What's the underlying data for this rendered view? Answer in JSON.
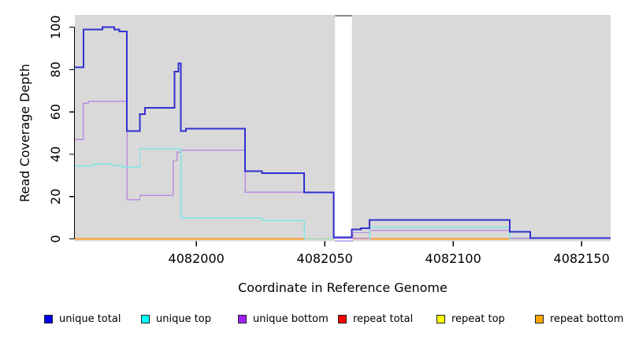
{
  "chart_data": {
    "type": "line",
    "title": "",
    "xlabel": "Coordinate in Reference Genome",
    "ylabel": "Read Coverage Depth",
    "x_ticks": [
      4082000,
      4082050,
      4082100,
      4082150
    ],
    "y_ticks": [
      0,
      20,
      40,
      60,
      80,
      100
    ],
    "xlim_display": [
      4081952.7,
      4082161.3
    ],
    "ylim_display": [
      -1.1,
      105.8
    ],
    "grid": false,
    "plot_background_color": "#d9d9d9",
    "coverage_gap_band": {
      "from": 4082054.0,
      "to": 4082060.6,
      "color": "#ffffff",
      "top_border_color": "#8a8a8a"
    },
    "legend": {
      "position": "bottom",
      "items": [
        {
          "label": "unique total",
          "color": "#0000ee"
        },
        {
          "label": "unique top",
          "color": "#00ffff"
        },
        {
          "label": "unique bottom",
          "color": "#a020f0"
        },
        {
          "label": "repeat total",
          "color": "#ff0000"
        },
        {
          "label": "repeat top",
          "color": "#ffff00"
        },
        {
          "label": "repeat bottom",
          "color": "#ffa500"
        }
      ]
    },
    "lines": [
      {
        "name": "band-lower-border",
        "color": "#9f9ff2",
        "width": 1.4,
        "segments": [
          [
            [
              4082053.9,
              -1
            ],
            [
              4082061,
              -1
            ]
          ]
        ]
      },
      {
        "name": "repeat-total-visible",
        "color": "#d04878",
        "width": 1.4,
        "segments": [
          [
            [
              4082060.6,
              0.2
            ],
            [
              4082068,
              0.2
            ]
          ]
        ]
      },
      {
        "name": "repeat-bottom",
        "color": "#ff9d26",
        "width": 1.6,
        "segments": [
          [
            [
              4081952.7,
              0
            ],
            [
              4082042,
              0
            ]
          ],
          [
            [
              4082068,
              0
            ],
            [
              4082122,
              0
            ]
          ]
        ]
      },
      {
        "name": "overlap-blend",
        "color": "#90d8a8",
        "width": 1.4,
        "segments": [
          [
            [
              4082042,
              0
            ],
            [
              4082053.9,
              0
            ]
          ],
          [
            [
              4082122,
              0
            ],
            [
              4082130,
              0
            ]
          ]
        ]
      },
      {
        "name": "unique-bottom",
        "color": "#bb8ede",
        "width": 1.4,
        "segments": [
          [
            [
              4081952.7,
              47
            ],
            [
              4081956,
              64
            ],
            [
              4081958,
              65
            ],
            [
              4081973,
              18.5
            ],
            [
              4081978,
              20.5
            ],
            [
              4081991,
              37
            ],
            [
              4081992.5,
              41
            ],
            [
              4081994,
              42
            ],
            [
              4082019,
              22
            ],
            [
              4082053.5,
              0.3
            ],
            [
              4082061,
              3
            ],
            [
              4082067.5,
              4
            ],
            [
              4082122,
              0.3
            ],
            [
              4082161.3,
              0.3
            ]
          ]
        ]
      },
      {
        "name": "unique-top",
        "color": "#7ee6e8",
        "width": 1.4,
        "segments": [
          [
            [
              4081952.7,
              34.5
            ],
            [
              4081960,
              35.5
            ],
            [
              4081967,
              34.7
            ],
            [
              4081971,
              34
            ],
            [
              4081978,
              42.5
            ],
            [
              4081994,
              10
            ],
            [
              4082025.5,
              8.7
            ],
            [
              4082042,
              0
            ]
          ],
          [
            [
              4082067.5,
              0
            ],
            [
              4082067.5,
              5.5
            ],
            [
              4082122,
              0
            ]
          ]
        ]
      },
      {
        "name": "unique-total",
        "color": "#3030d0",
        "width": 2,
        "segments": [
          [
            [
              4081952.7,
              81
            ],
            [
              4081956,
              99
            ],
            [
              4081963.5,
              100
            ],
            [
              4081968,
              99
            ],
            [
              4081970,
              98
            ],
            [
              4081973,
              51
            ],
            [
              4081978,
              59
            ],
            [
              4081980,
              62
            ],
            [
              4081991.5,
              79
            ],
            [
              4081993,
              83
            ],
            [
              4081994,
              51
            ],
            [
              4081996,
              52
            ],
            [
              4082019,
              32
            ],
            [
              4082025.5,
              31
            ],
            [
              4082042,
              22
            ],
            [
              4082053.5,
              0.8
            ],
            [
              4082060.6,
              4.5
            ],
            [
              4082064,
              5
            ],
            [
              4082067.5,
              9
            ],
            [
              4082122,
              3.4
            ],
            [
              4082130,
              0.3
            ],
            [
              4082161.3,
              0.3
            ]
          ]
        ]
      }
    ]
  }
}
